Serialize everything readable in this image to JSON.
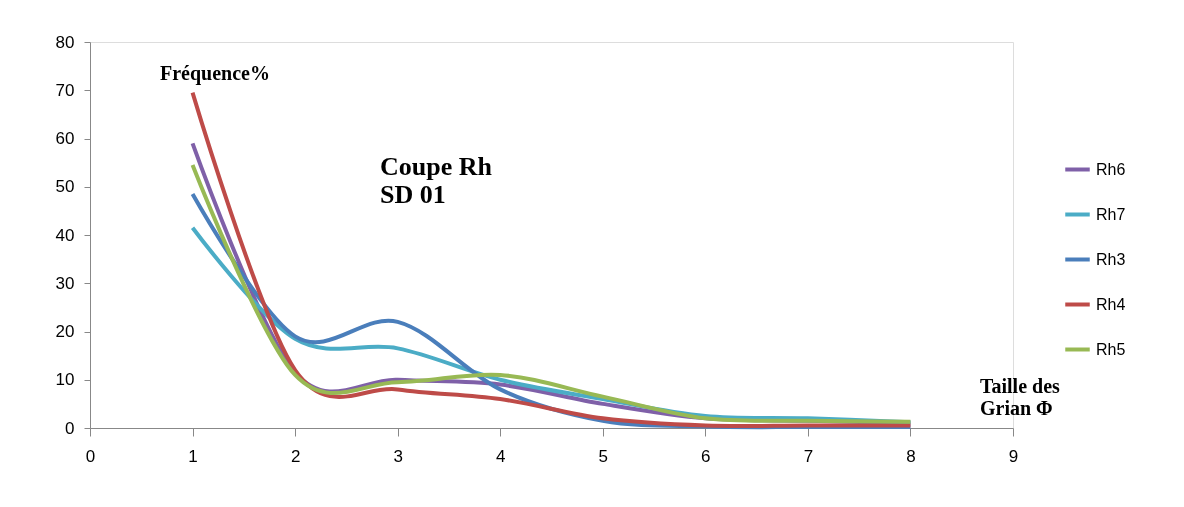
{
  "chart_data": {
    "type": "line",
    "title": "Coupe Rh\nSD 01",
    "ylabel": "Fréquence%",
    "xlabel": "Taille des\nGrian Φ",
    "x": [
      1,
      2,
      3,
      4,
      5,
      6,
      7,
      8
    ],
    "series": [
      {
        "name": "Rh6",
        "color": "#7f60a8",
        "values": [
          59,
          11.5,
          10,
          9,
          5,
          2,
          1.5,
          1
        ]
      },
      {
        "name": "Rh7",
        "color": "#4bacc6",
        "values": [
          41.5,
          18.5,
          16.5,
          10,
          6,
          2.5,
          2,
          1.2
        ]
      },
      {
        "name": "Rh3",
        "color": "#4a7ebb",
        "values": [
          48.5,
          19,
          22,
          8,
          1.5,
          0.3,
          0.2,
          0.2
        ]
      },
      {
        "name": "Rh4",
        "color": "#be4b48",
        "values": [
          69.5,
          12,
          8,
          6,
          2,
          0.5,
          0.5,
          0.5
        ]
      },
      {
        "name": "Rh5",
        "color": "#98b954",
        "values": [
          54.5,
          11,
          9.5,
          11,
          6.5,
          2,
          1.5,
          1.3
        ]
      }
    ],
    "xlim": [
      0,
      9
    ],
    "xticks": [
      0,
      1,
      2,
      3,
      4,
      5,
      6,
      7,
      8,
      9
    ],
    "ylim": [
      0,
      80
    ],
    "yticks": [
      0,
      10,
      20,
      30,
      40,
      50,
      60,
      70,
      80
    ],
    "grid": false,
    "legend": "right",
    "marker": "none",
    "line_style": "solid"
  }
}
